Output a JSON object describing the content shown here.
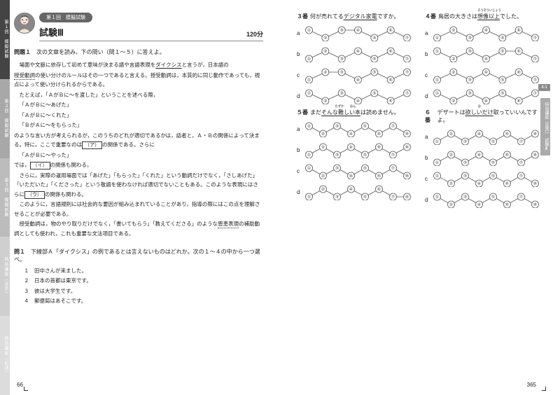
{
  "sidetabs": [
    {
      "label": "第１回　模擬試験",
      "bg": "#444444"
    },
    {
      "label": "第２回　模擬試験",
      "bg": "#a8a8a8"
    },
    {
      "label": "第３回　模擬試験",
      "bg": "#bcbcbc"
    },
    {
      "label": "特別講座〈音声〉",
      "bg": "#cfcfcf"
    },
    {
      "label": "特別講座〈記述〉",
      "bg": "#dcdcdc"
    }
  ],
  "header": {
    "chip": "第１回　模擬試験",
    "title": "試験Ⅲ",
    "time": "120分"
  },
  "problem_label": "問題１",
  "problem_lead": "次の文章を読み，下の問い（問１～５）に答えよ。",
  "passage": {
    "p1a": "　場面や文脈に依存して初めて意味が決まる語や言語表現を",
    "p1deixis": "ダイクシス",
    "p1b": "と言うが，日本語の",
    "p2u": "授受動詞",
    "p2a": "の使い分けのルールはその一つであると言える。授受動詞は，本質的に同じ動作であっても，視点によって使い分けられるからである。",
    "p3": "　たとえば，「ＡがＢに～を渡した」ということを述べる際，",
    "p4": "「ＡがＢに～あげた」",
    "p5": "「ＡがＢに～くれた」",
    "p6": "「ＢがＡに～をもらった」",
    "p7a": "のような言い方が考えられるが，このうちのどれが適切であるかは，話者と，Ａ・Ｂの関係によって決まる。特に，ここで重要なのは",
    "p7box": "（ア）",
    "p7b": "の関係である。さらに",
    "p8": "「ＡがＢに～やった」",
    "p9a": "では，",
    "p9box": "（イ）",
    "p9b": "の関係も関わる。",
    "p10a": "　さらに，実際の運用場面では「あげた」「もらった」「くれた」という動詞だけでなく，「さしあげた」「いただいた」「くださった」という敬語を使わなければ適切でないこともある。このような表現にはさらに",
    "p10box": "（ウ）",
    "p10b": "の関係も関わる。",
    "p11": "　このように，言語規則には社会的な要因が組み込まれていることがあり，指導の際にはこの点を理解させることが必要である。",
    "p12a": "　授受動詞は，物のやり取りだけでなく，「書いてもらう」「教えてくださる」のような",
    "p12u": "恩恵表現",
    "p12b": "の補助動詞としても使われ，これも重要な文法項目である。"
  },
  "q1": {
    "head": "問１",
    "text": "下線部Ａ「ダイクシス」の例であるとは言えないものはどれか。次の１～４の中から一つ選べ。",
    "choices": [
      "田中さんが来ました。",
      "日本の首都は東京です。",
      "彼は大学生です。",
      "郵便局はあそこです。"
    ]
  },
  "page_left": "66",
  "page_right": "365",
  "right_tab": {
    "num": "4-1",
    "label": "特別講座〈音声〉　試験Ⅲ",
    "bg": "#8c8c8c"
  },
  "rq": [
    {
      "num": "３番",
      "pre": "何が売れてる",
      "u": "デジタル家電",
      "post": "ですか。",
      "n": 7,
      "sets": [
        [
          3,
          5,
          5,
          3,
          5,
          3
        ],
        [
          5,
          3,
          5,
          3,
          5,
          3
        ],
        [
          5,
          5,
          3,
          5,
          3,
          5
        ],
        [
          3,
          5,
          3,
          5,
          3,
          5
        ]
      ]
    },
    {
      "num": "４番",
      "pre": "鳥居の大きさは",
      "u": "想像以上",
      "ruby": "そうぞういじょう",
      "post": "でした。",
      "n": 7,
      "sets": [
        [
          5,
          3,
          5,
          3,
          5,
          3
        ],
        [
          3,
          5,
          3,
          5,
          5,
          3
        ],
        [
          5,
          3,
          5,
          3,
          5,
          3
        ],
        [
          3,
          5,
          3,
          5,
          3,
          5
        ]
      ]
    },
    {
      "num": "５番",
      "pre": "まだ",
      "u": "そんな難しい本",
      "ruby": "　　　むずか　　ほん",
      "post": "は読めません。",
      "n": 8,
      "sets": [
        [
          3,
          5,
          3,
          5,
          3,
          5,
          3
        ],
        [
          5,
          3,
          5,
          3,
          5,
          3,
          5
        ],
        [
          3,
          5,
          3,
          5,
          3,
          5,
          3
        ],
        [
          5,
          3,
          5,
          3,
          5,
          3,
          3
        ]
      ]
    },
    {
      "num": "６番",
      "pre": "デザートは",
      "u": "欲しいだけ",
      "ruby": "ほ",
      "post": "取っていいんですよ。",
      "n": 8,
      "sets": [
        [
          5,
          3,
          5,
          3,
          5,
          3,
          5
        ],
        [
          5,
          3,
          5,
          3,
          5,
          3,
          5
        ],
        [
          3,
          5,
          3,
          5,
          3,
          5,
          3
        ],
        [
          3,
          5,
          3,
          5,
          3,
          5,
          3
        ]
      ]
    }
  ],
  "optlabels": [
    "a",
    "b",
    "c",
    "d"
  ],
  "colors": {
    "node_stroke": "#555",
    "line": "#555"
  }
}
